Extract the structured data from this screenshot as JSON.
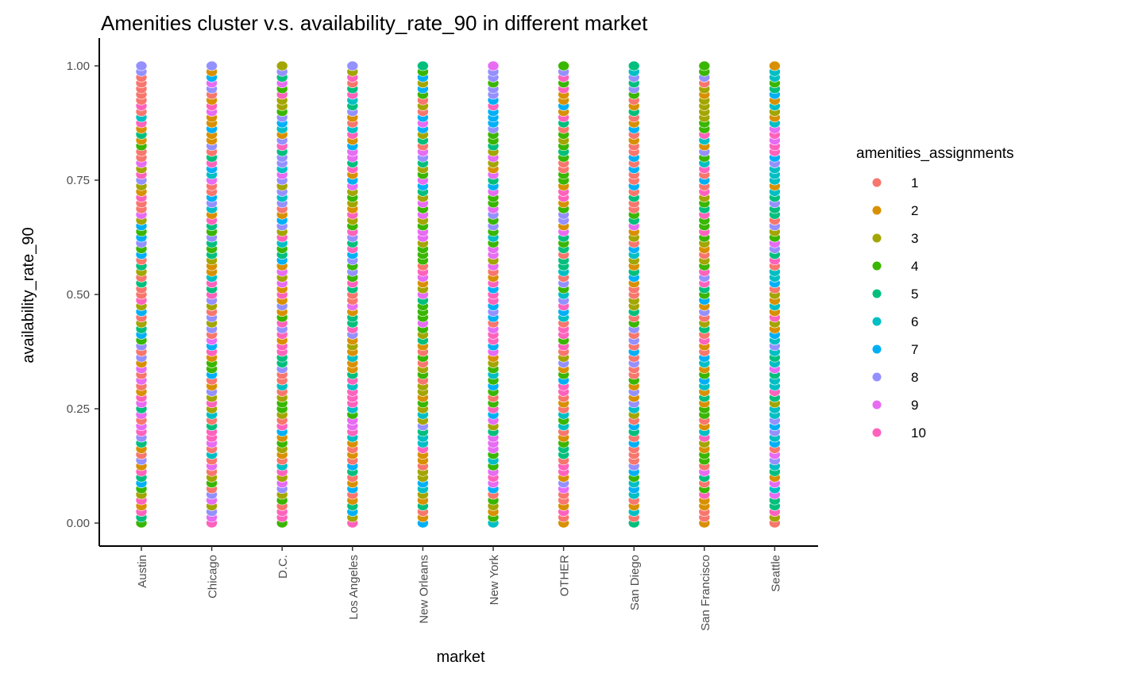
{
  "chart_data": {
    "type": "scatter",
    "title": "Amenities cluster v.s. availability_rate_90 in different market",
    "xlabel": "market",
    "ylabel": "availability_rate_90",
    "categories": [
      "Austin",
      "Chicago",
      "D.C.",
      "Los Angeles",
      "New Orleans",
      "New York",
      "OTHER",
      "San Diego",
      "San Francisco",
      "Seattle"
    ],
    "ylim": [
      0,
      1
    ],
    "yticks": [
      0,
      0.25,
      0.5,
      0.75,
      1
    ],
    "ytick_labels": [
      "0.00",
      "0.25",
      "0.50",
      "0.75",
      "1.00"
    ],
    "grid": false,
    "legend": {
      "title": "amenities_assignments",
      "position": "right",
      "entries": [
        {
          "label": "1",
          "color": "#F8766D"
        },
        {
          "label": "2",
          "color": "#D89000"
        },
        {
          "label": "3",
          "color": "#A3A500"
        },
        {
          "label": "4",
          "color": "#39B600"
        },
        {
          "label": "5",
          "color": "#00BF7D"
        },
        {
          "label": "6",
          "color": "#00BFC4"
        },
        {
          "label": "7",
          "color": "#00B0F6"
        },
        {
          "label": "8",
          "color": "#9590FF"
        },
        {
          "label": "9",
          "color": "#E76BF3"
        },
        {
          "label": "10",
          "color": "#FF62BC"
        }
      ]
    },
    "point_y_step": 0.0125,
    "cluster_weights": {
      "Austin": [
        4,
        2,
        1,
        1,
        1,
        1,
        1,
        1,
        1,
        2
      ],
      "Chicago": [
        3,
        3,
        2,
        1,
        1,
        1,
        1,
        1,
        2,
        2
      ],
      "D.C.": [
        2,
        2,
        2,
        1,
        2,
        1,
        1,
        2,
        1,
        1
      ],
      "Los Angeles": [
        3,
        2,
        1,
        1,
        2,
        1,
        1,
        1,
        2,
        3
      ],
      "New Orleans": [
        2,
        2,
        2,
        2,
        2,
        1,
        1,
        1,
        1,
        1
      ],
      "New York": [
        1,
        1,
        1,
        2,
        1,
        1,
        3,
        2,
        3,
        2
      ],
      "OTHER": [
        3,
        2,
        1,
        2,
        2,
        1,
        1,
        1,
        1,
        2
      ],
      "San Diego": [
        3,
        2,
        2,
        1,
        1,
        2,
        2,
        1,
        1,
        1
      ],
      "San Francisco": [
        3,
        3,
        2,
        2,
        1,
        1,
        1,
        1,
        1,
        3
      ],
      "Seattle": [
        1,
        1,
        2,
        1,
        2,
        6,
        2,
        1,
        1,
        1
      ]
    }
  }
}
